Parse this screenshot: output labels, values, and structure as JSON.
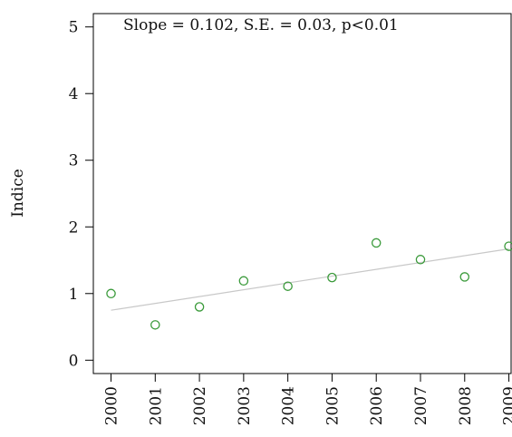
{
  "chart_data": {
    "type": "scatter",
    "title": "",
    "annotation": "Slope = 0.102, S.E. = 0.03, p<0.01",
    "xlabel": "",
    "ylabel": "Indice",
    "x": [
      2000,
      2001,
      2002,
      2003,
      2004,
      2005,
      2006,
      2007,
      2008,
      2009
    ],
    "y": [
      1.0,
      0.53,
      0.8,
      1.19,
      1.11,
      1.24,
      1.76,
      1.51,
      1.25,
      1.71
    ],
    "xticks": [
      "2000",
      "2001",
      "2002",
      "2003",
      "2004",
      "2005",
      "2006",
      "2007",
      "2008",
      "2009"
    ],
    "yticks": [
      0,
      1,
      2,
      3,
      4,
      5
    ],
    "ylim": [
      -0.2,
      5.2
    ],
    "xlim": [
      1999.6,
      2009.05
    ],
    "trend_line": {
      "x": [
        2000,
        2009
      ],
      "y": [
        0.75,
        1.67
      ]
    },
    "grid": false,
    "point_color": "#3a9a3a",
    "trend_color": "#c8c8c8",
    "axis_color": "#000000"
  }
}
